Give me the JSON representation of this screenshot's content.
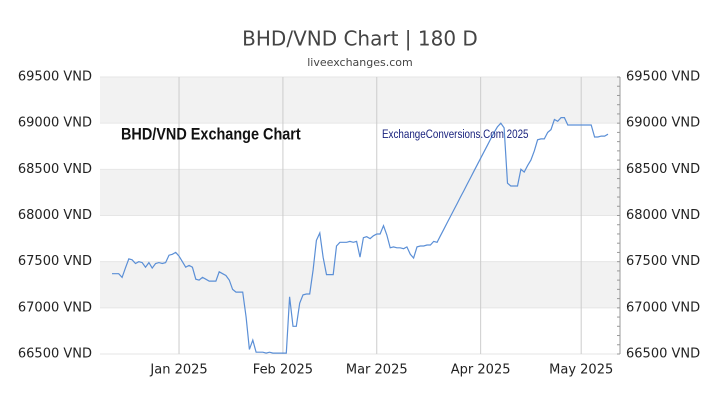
{
  "chart_data": {
    "type": "line",
    "title": "BHD/VND Chart | 180 D",
    "subtitle": "liveexchanges.com",
    "annotations": [
      "BHD/VND Exchange Chart",
      "ExchangeConversions.Com 2025"
    ],
    "categories": [
      null,
      null,
      null,
      null,
      null,
      null,
      null,
      null,
      null,
      null,
      null,
      null,
      null,
      null,
      null,
      null,
      null,
      null,
      null,
      null,
      "Jan 2025",
      null,
      null,
      null,
      null,
      null,
      null,
      null,
      null,
      null,
      null,
      null,
      null,
      null,
      null,
      null,
      null,
      null,
      null,
      null,
      null,
      null,
      null,
      null,
      null,
      null,
      null,
      null,
      null,
      null,
      null,
      "Feb 2025",
      null,
      null,
      null,
      null,
      null,
      null,
      null,
      null,
      null,
      null,
      null,
      null,
      null,
      null,
      null,
      null,
      null,
      null,
      null,
      null,
      null,
      null,
      null,
      null,
      null,
      null,
      null,
      "Mar 2025",
      null,
      null,
      null,
      null,
      null,
      null,
      null,
      null,
      null,
      null,
      null,
      null,
      null,
      null,
      null,
      null,
      null,
      null,
      null,
      null,
      null,
      null,
      null,
      null,
      null,
      null,
      null,
      null,
      null,
      null,
      "Apr 2025",
      null,
      null,
      null,
      null,
      null,
      null,
      null,
      null,
      null,
      null,
      null,
      null,
      null,
      null,
      null,
      null,
      null,
      null,
      null,
      null,
      null,
      null,
      null,
      null,
      null,
      null,
      null,
      null,
      null,
      "May 2025",
      null,
      null,
      null,
      null,
      null,
      null,
      null,
      null
    ],
    "values": [
      67370,
      67370,
      67370,
      67330,
      67430,
      67530,
      67520,
      67480,
      67500,
      67490,
      67440,
      67490,
      67430,
      67480,
      67490,
      67480,
      67490,
      67570,
      67580,
      67600,
      67560,
      67500,
      67440,
      67460,
      67440,
      67310,
      67300,
      67330,
      67310,
      67290,
      67290,
      67290,
      67390,
      67370,
      67350,
      67300,
      67200,
      67170,
      67170,
      67170,
      66900,
      66550,
      66650,
      66520,
      66520,
      66520,
      66510,
      66520,
      66510,
      66510,
      66510,
      66510,
      66510,
      67120,
      66800,
      66800,
      67050,
      67140,
      67150,
      67150,
      67410,
      67730,
      67810,
      67550,
      67360,
      67360,
      67360,
      67670,
      67710,
      67710,
      67710,
      67720,
      67710,
      67720,
      67550,
      67760,
      67770,
      67750,
      67780,
      67800,
      67800,
      67890,
      67790,
      67650,
      67660,
      67650,
      67650,
      67640,
      67660,
      67580,
      67540,
      67660,
      67670,
      67670,
      67680,
      67680,
      67720,
      67710,
      67780,
      67850,
      67920,
      67990,
      68060,
      68130,
      68200,
      68270,
      68340,
      68410,
      68480,
      68550,
      68620,
      68690,
      68760,
      68830,
      68900,
      68960,
      69000,
      68950,
      68350,
      68320,
      68320,
      68320,
      68500,
      68470,
      68540,
      68600,
      68700,
      68820,
      68830,
      68830,
      68900,
      68930,
      69040,
      69020,
      69060,
      69060,
      68980,
      68980,
      68980,
      68980,
      68980,
      68980,
      68980,
      68980,
      68850,
      68850,
      68860,
      68860,
      68880
    ],
    "color": "#5b8fd6",
    "ylim": [
      66500,
      69500
    ],
    "yticks": [
      {
        "value": 66500,
        "label": "66500 VND"
      },
      {
        "value": 67000,
        "label": "67000 VND"
      },
      {
        "value": 67500,
        "label": "67500 VND"
      },
      {
        "value": 68000,
        "label": "68000 VND"
      },
      {
        "value": 68500,
        "label": "68500 VND"
      },
      {
        "value": 69000,
        "label": "69000 VND"
      },
      {
        "value": 69500,
        "label": "69500 VND"
      }
    ],
    "grid": true
  }
}
